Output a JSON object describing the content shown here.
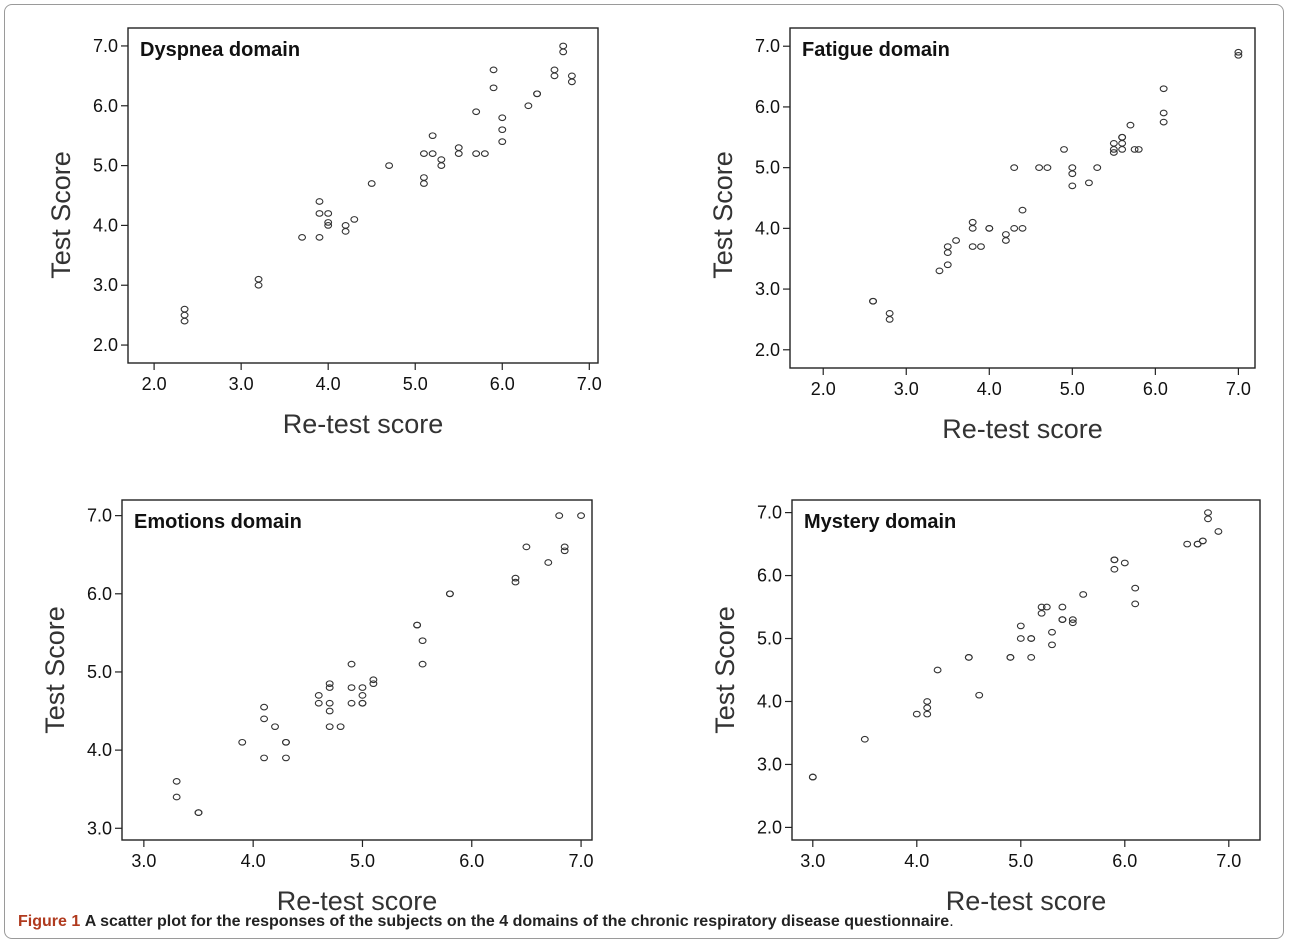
{
  "caption": {
    "lead": "Figure 1",
    "text": "A scatter plot for the responses of the subjects on the 4 domains of the chronic respiratory disease questionnaire",
    "end": "."
  },
  "chart_data": [
    {
      "type": "scatter",
      "title": "Dyspnea domain",
      "xlabel": "Re-test score",
      "ylabel": "Test  Score",
      "xlim": [
        1.7,
        7.1
      ],
      "ylim": [
        1.7,
        7.3
      ],
      "xticks": [
        "2.0",
        "3.0",
        "4.0",
        "5.0",
        "6.0",
        "7.0"
      ],
      "yticks": [
        "2.0",
        "3.0",
        "4.0",
        "5.0",
        "6.0",
        "7.0"
      ],
      "grid": false,
      "points": [
        [
          2.35,
          2.4
        ],
        [
          2.35,
          2.5
        ],
        [
          2.35,
          2.6
        ],
        [
          3.2,
          3.0
        ],
        [
          3.2,
          3.1
        ],
        [
          3.7,
          3.8
        ],
        [
          3.9,
          3.8
        ],
        [
          3.9,
          4.2
        ],
        [
          3.9,
          4.4
        ],
        [
          4.0,
          4.0
        ],
        [
          4.0,
          4.05
        ],
        [
          4.0,
          4.2
        ],
        [
          4.2,
          3.9
        ],
        [
          4.2,
          4.0
        ],
        [
          4.3,
          4.1
        ],
        [
          4.5,
          4.7
        ],
        [
          4.7,
          5.0
        ],
        [
          5.1,
          4.7
        ],
        [
          5.1,
          4.8
        ],
        [
          5.1,
          5.2
        ],
        [
          5.2,
          5.2
        ],
        [
          5.2,
          5.5
        ],
        [
          5.3,
          5.0
        ],
        [
          5.3,
          5.1
        ],
        [
          5.5,
          5.2
        ],
        [
          5.5,
          5.3
        ],
        [
          5.7,
          5.2
        ],
        [
          5.7,
          5.9
        ],
        [
          5.8,
          5.2
        ],
        [
          5.9,
          6.3
        ],
        [
          5.9,
          6.6
        ],
        [
          6.0,
          5.4
        ],
        [
          6.0,
          5.6
        ],
        [
          6.0,
          5.8
        ],
        [
          6.3,
          6.0
        ],
        [
          6.4,
          6.2
        ],
        [
          6.4,
          6.2
        ],
        [
          6.6,
          6.5
        ],
        [
          6.6,
          6.6
        ],
        [
          6.7,
          6.9
        ],
        [
          6.7,
          7.0
        ],
        [
          6.8,
          6.4
        ],
        [
          6.8,
          6.5
        ]
      ]
    },
    {
      "type": "scatter",
      "title": "Fatigue domain",
      "xlabel": "Re-test score",
      "ylabel": "Test  Score",
      "xlim": [
        1.6,
        7.2
      ],
      "ylim": [
        1.7,
        7.3
      ],
      "xticks": [
        "2.0",
        "3.0",
        "4.0",
        "5.0",
        "6.0",
        "7.0"
      ],
      "yticks": [
        "2.0",
        "3.0",
        "4.0",
        "5.0",
        "6.0",
        "7.0"
      ],
      "grid": false,
      "points": [
        [
          2.6,
          2.8
        ],
        [
          2.6,
          2.8
        ],
        [
          2.8,
          2.5
        ],
        [
          2.8,
          2.6
        ],
        [
          3.4,
          3.3
        ],
        [
          3.5,
          3.4
        ],
        [
          3.5,
          3.6
        ],
        [
          3.5,
          3.7
        ],
        [
          3.6,
          3.8
        ],
        [
          3.8,
          3.7
        ],
        [
          3.8,
          4.0
        ],
        [
          3.8,
          4.1
        ],
        [
          3.9,
          3.7
        ],
        [
          4.0,
          4.0
        ],
        [
          4.0,
          4.0
        ],
        [
          4.2,
          3.8
        ],
        [
          4.2,
          3.9
        ],
        [
          4.3,
          4.0
        ],
        [
          4.3,
          5.0
        ],
        [
          4.4,
          4.0
        ],
        [
          4.4,
          4.3
        ],
        [
          4.6,
          5.0
        ],
        [
          4.7,
          5.0
        ],
        [
          4.9,
          5.3
        ],
        [
          5.0,
          4.7
        ],
        [
          5.0,
          4.9
        ],
        [
          5.0,
          5.0
        ],
        [
          5.2,
          4.75
        ],
        [
          5.3,
          5.0
        ],
        [
          5.5,
          5.25
        ],
        [
          5.5,
          5.3
        ],
        [
          5.5,
          5.4
        ],
        [
          5.6,
          5.3
        ],
        [
          5.6,
          5.4
        ],
        [
          5.6,
          5.5
        ],
        [
          5.6,
          5.5
        ],
        [
          5.7,
          5.7
        ],
        [
          5.75,
          5.3
        ],
        [
          5.8,
          5.3
        ],
        [
          6.1,
          5.75
        ],
        [
          6.1,
          5.9
        ],
        [
          6.1,
          6.3
        ],
        [
          7.0,
          6.85
        ],
        [
          7.0,
          6.9
        ]
      ]
    },
    {
      "type": "scatter",
      "title": "Emotions domain",
      "xlabel": "Re-test score",
      "ylabel": "Test  Score",
      "xlim": [
        2.8,
        7.1
      ],
      "ylim": [
        2.85,
        7.2
      ],
      "xticks": [
        "3.0",
        "4.0",
        "5.0",
        "6.0",
        "7.0"
      ],
      "yticks": [
        "3.0",
        "4.0",
        "5.0",
        "6.0",
        "7.0"
      ],
      "grid": false,
      "points": [
        [
          3.3,
          3.4
        ],
        [
          3.3,
          3.6
        ],
        [
          3.5,
          3.2
        ],
        [
          3.5,
          3.2
        ],
        [
          3.9,
          4.1
        ],
        [
          4.1,
          3.9
        ],
        [
          4.1,
          4.4
        ],
        [
          4.1,
          4.55
        ],
        [
          4.2,
          4.3
        ],
        [
          4.3,
          3.9
        ],
        [
          4.3,
          4.1
        ],
        [
          4.3,
          4.1
        ],
        [
          4.6,
          4.6
        ],
        [
          4.6,
          4.7
        ],
        [
          4.7,
          4.3
        ],
        [
          4.7,
          4.5
        ],
        [
          4.7,
          4.6
        ],
        [
          4.7,
          4.8
        ],
        [
          4.7,
          4.85
        ],
        [
          4.8,
          4.3
        ],
        [
          4.9,
          4.6
        ],
        [
          4.9,
          4.8
        ],
        [
          4.9,
          5.1
        ],
        [
          5.0,
          4.6
        ],
        [
          5.0,
          4.6
        ],
        [
          5.0,
          4.7
        ],
        [
          5.0,
          4.8
        ],
        [
          5.1,
          4.85
        ],
        [
          5.1,
          4.9
        ],
        [
          5.5,
          5.6
        ],
        [
          5.5,
          5.6
        ],
        [
          5.55,
          5.1
        ],
        [
          5.55,
          5.4
        ],
        [
          5.8,
          6.0
        ],
        [
          5.8,
          6.0
        ],
        [
          6.4,
          6.15
        ],
        [
          6.4,
          6.2
        ],
        [
          6.5,
          6.6
        ],
        [
          6.7,
          6.4
        ],
        [
          6.8,
          7.0
        ],
        [
          6.85,
          6.55
        ],
        [
          6.85,
          6.6
        ],
        [
          7.0,
          7.0
        ]
      ]
    },
    {
      "type": "scatter",
      "title": "Mystery domain",
      "xlabel": "Re-test score",
      "ylabel": "Test  Score",
      "xlim": [
        2.8,
        7.3
      ],
      "ylim": [
        1.8,
        7.2
      ],
      "xticks": [
        "3.0",
        "4.0",
        "5.0",
        "6.0",
        "7.0"
      ],
      "yticks": [
        "2.0",
        "3.0",
        "4.0",
        "5.0",
        "6.0",
        "7.0"
      ],
      "grid": false,
      "points": [
        [
          3.0,
          2.8
        ],
        [
          3.0,
          2.8
        ],
        [
          3.5,
          3.4
        ],
        [
          4.0,
          3.8
        ],
        [
          4.1,
          3.8
        ],
        [
          4.1,
          3.9
        ],
        [
          4.1,
          4.0
        ],
        [
          4.2,
          4.5
        ],
        [
          4.5,
          4.7
        ],
        [
          4.5,
          4.7
        ],
        [
          4.6,
          4.1
        ],
        [
          4.9,
          4.7
        ],
        [
          4.9,
          4.7
        ],
        [
          5.0,
          5.0
        ],
        [
          5.0,
          5.2
        ],
        [
          5.1,
          4.7
        ],
        [
          5.1,
          5.0
        ],
        [
          5.1,
          5.0
        ],
        [
          5.2,
          5.4
        ],
        [
          5.2,
          5.5
        ],
        [
          5.25,
          5.5
        ],
        [
          5.3,
          4.9
        ],
        [
          5.3,
          5.1
        ],
        [
          5.4,
          5.3
        ],
        [
          5.4,
          5.5
        ],
        [
          5.4,
          5.3
        ],
        [
          5.5,
          5.25
        ],
        [
          5.5,
          5.3
        ],
        [
          5.6,
          5.7
        ],
        [
          5.9,
          6.1
        ],
        [
          5.9,
          6.25
        ],
        [
          5.9,
          6.25
        ],
        [
          6.0,
          6.2
        ],
        [
          6.1,
          5.55
        ],
        [
          6.1,
          5.8
        ],
        [
          6.6,
          6.5
        ],
        [
          6.7,
          6.5
        ],
        [
          6.7,
          6.5
        ],
        [
          6.75,
          6.55
        ],
        [
          6.75,
          6.55
        ],
        [
          6.8,
          6.9
        ],
        [
          6.8,
          7.0
        ],
        [
          6.9,
          6.7
        ]
      ]
    }
  ]
}
